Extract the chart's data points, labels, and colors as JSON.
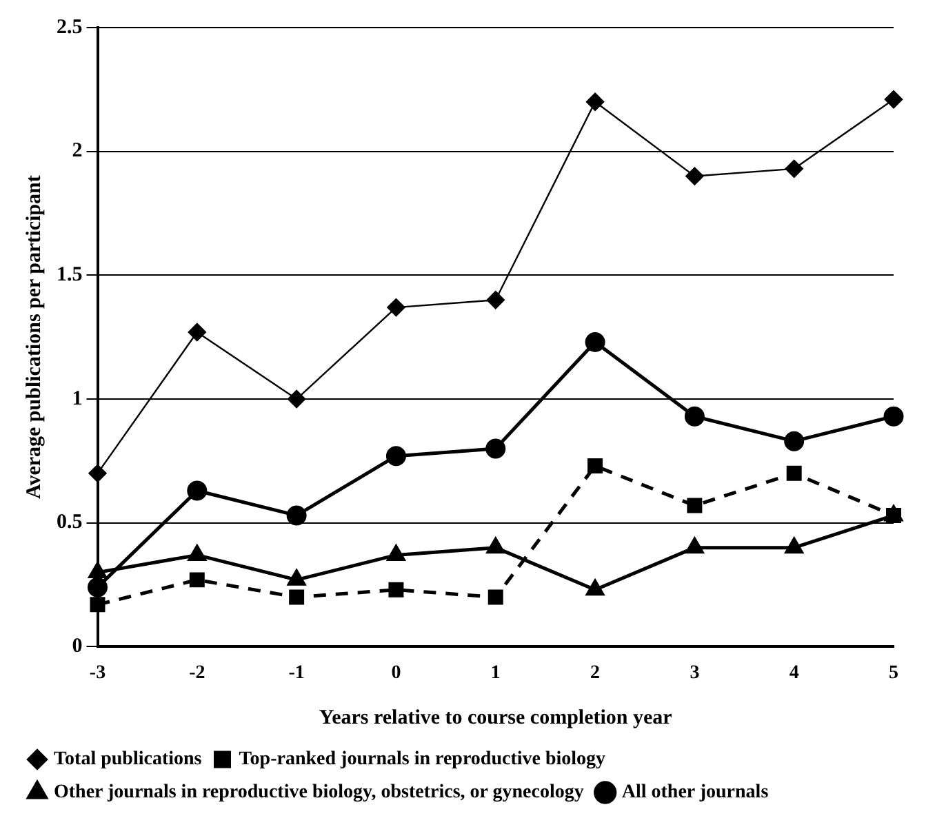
{
  "chart_data": {
    "type": "line",
    "xlabel": "Years relative to course completion year",
    "ylabel": "Average publications per participant",
    "categories": [
      "-3",
      "-2",
      "-1",
      "0",
      "1",
      "2",
      "3",
      "4",
      "5"
    ],
    "ylim": [
      0,
      2.5
    ],
    "yticks": [
      0,
      0.5,
      1,
      1.5,
      2,
      2.5
    ],
    "grid": "y",
    "legend": "bottom",
    "series": [
      {
        "name": "Total publications",
        "color": "#000000",
        "marker": "diamond",
        "line_style": "solid",
        "values": [
          0.7,
          1.27,
          1.0,
          1.37,
          1.4,
          2.2,
          1.9,
          1.93,
          2.21
        ]
      },
      {
        "name": "Top-ranked journals in reproductive biology",
        "color": "#000000",
        "marker": "square",
        "line_style": "dashed",
        "values": [
          0.17,
          0.27,
          0.2,
          0.23,
          0.2,
          0.73,
          0.57,
          0.7,
          0.53
        ]
      },
      {
        "name": "Other journals in reproductive biology, obstetrics, or gynecology",
        "color": "#000000",
        "marker": "triangle",
        "line_style": "solid",
        "values": [
          0.3,
          0.37,
          0.27,
          0.37,
          0.4,
          0.23,
          0.4,
          0.4,
          0.53
        ]
      },
      {
        "name": "All other journals",
        "color": "#000000",
        "marker": "circle",
        "line_style": "solid",
        "values": [
          0.24,
          0.63,
          0.53,
          0.77,
          0.8,
          1.23,
          0.93,
          0.83,
          0.93
        ]
      }
    ]
  }
}
